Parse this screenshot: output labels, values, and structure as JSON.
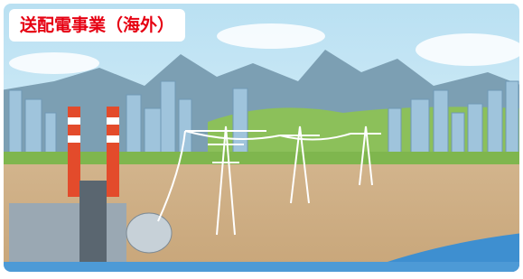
{
  "label": "送配電事業（海外）"
}
